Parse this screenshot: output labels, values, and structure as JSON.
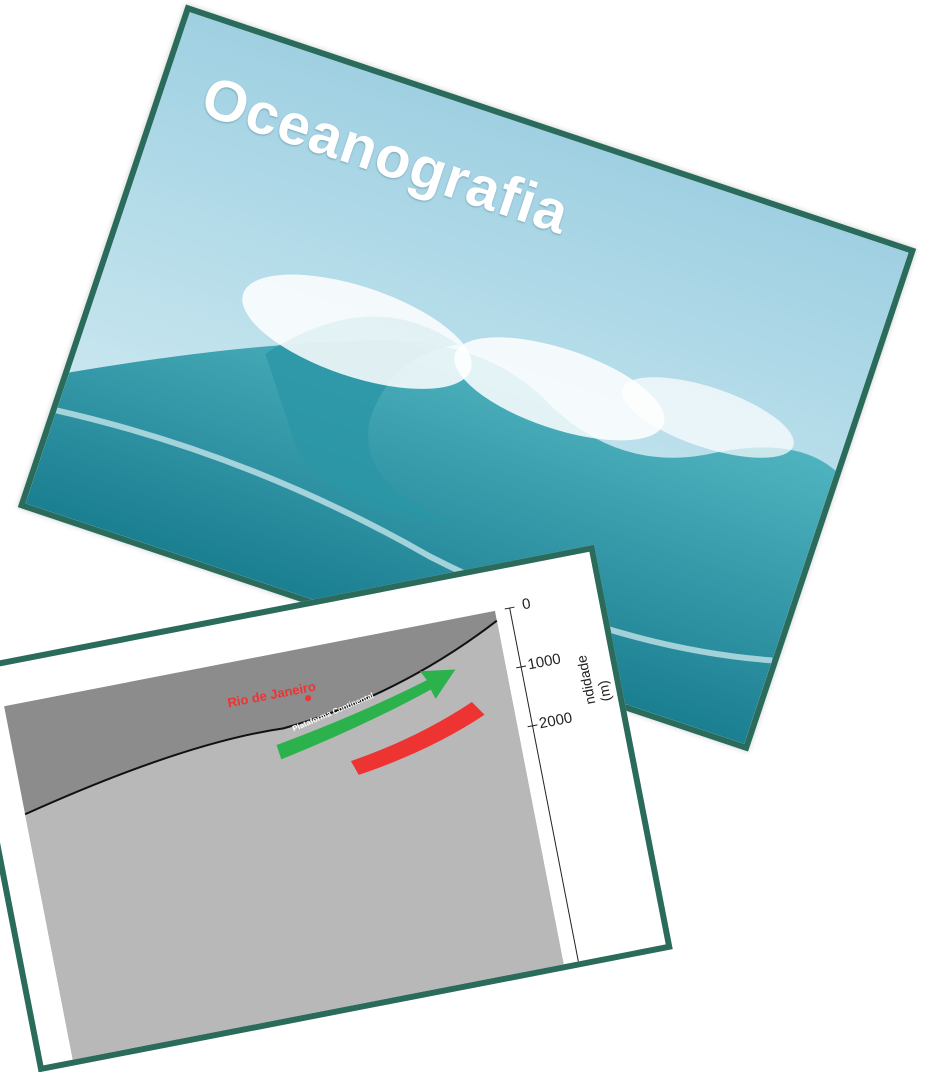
{
  "title": "Oceanografia",
  "figure": {
    "depth_ticks": [
      "0",
      "1000",
      "2000"
    ],
    "depth_axis_label": "ndidade (m)",
    "city_label": "Rio de Janeiro",
    "shelf_label": "Plataforma Continental"
  }
}
